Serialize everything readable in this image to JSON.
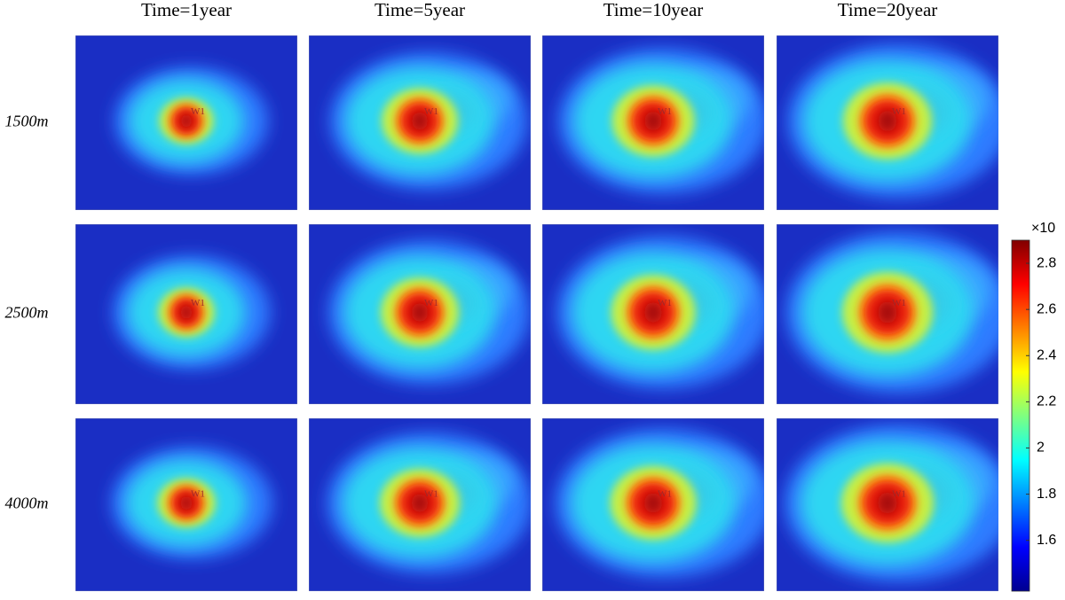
{
  "columns": [
    "Time=1year",
    "Time=5year",
    "Time=10year",
    "Time=20year"
  ],
  "rows": [
    "1500m",
    "2500m",
    "4000m"
  ],
  "well": "W1",
  "colorbar": {
    "label": "×10",
    "lim": [
      1.38,
      2.9
    ],
    "ticks": [
      1.6,
      1.8,
      2,
      2.2,
      2.4,
      2.6,
      2.8
    ]
  }
}
